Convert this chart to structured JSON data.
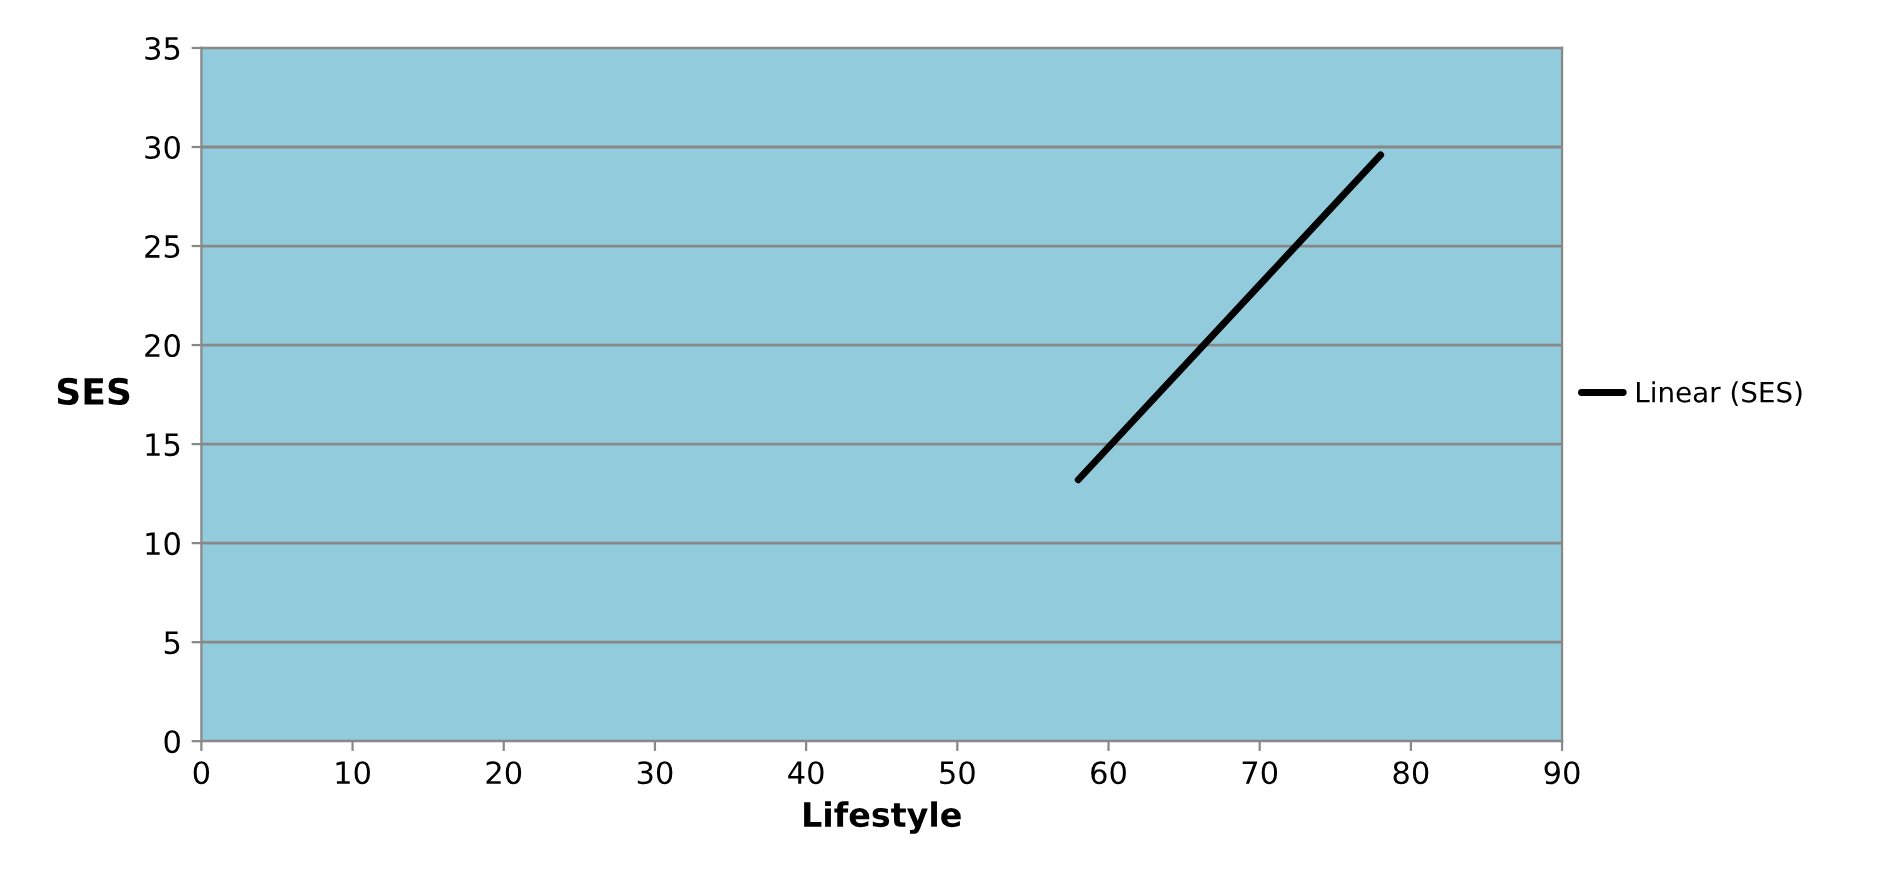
{
  "chart_data": {
    "type": "line",
    "xlabel": "Lifestyle",
    "ylabel": "SES",
    "series": [
      {
        "name": "Linear (SES)",
        "color": "#000000",
        "x": [
          58,
          78
        ],
        "values": [
          13.2,
          29.6
        ]
      }
    ],
    "xlim": [
      0,
      90
    ],
    "xticks": [
      0,
      10,
      20,
      30,
      40,
      50,
      60,
      70,
      80,
      90
    ],
    "ylim": [
      0,
      35
    ],
    "yticks": [
      0,
      5,
      10,
      15,
      20,
      25,
      30,
      35
    ],
    "grid": "y",
    "legend": "right",
    "marker": "none",
    "line_style": "solid"
  }
}
